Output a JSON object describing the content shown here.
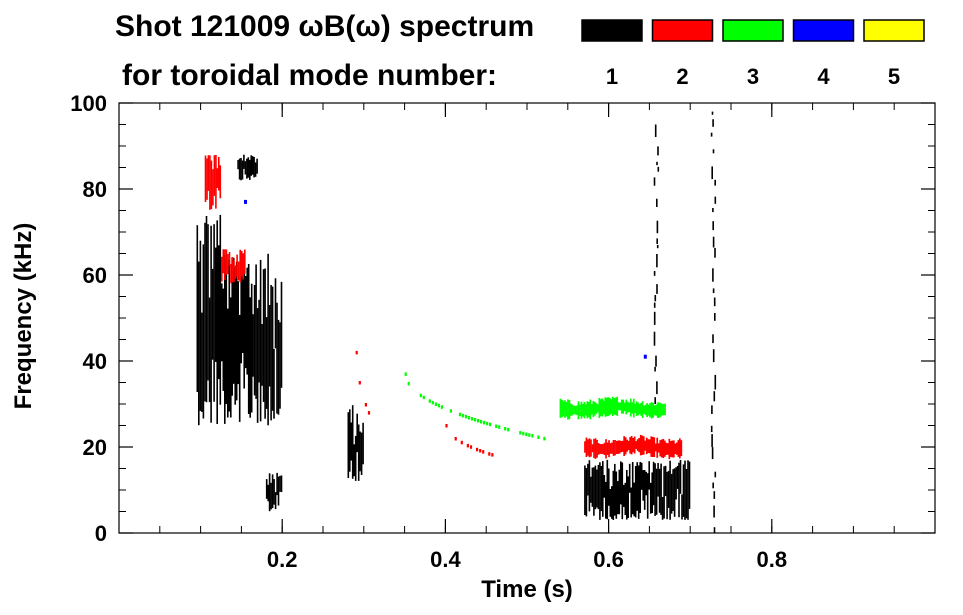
{
  "chart_data": {
    "type": "heatmap",
    "title_line1": "Shot 121009 ωB(ω) spectrum",
    "title_line2": "for toroidal mode number:",
    "xlabel": "Time (s)",
    "ylabel": "Frequency (kHz)",
    "xlim": [
      0.0,
      1.0
    ],
    "ylim": [
      0,
      100
    ],
    "xticks": [
      0.2,
      0.4,
      0.6,
      0.8
    ],
    "xtick_labels": [
      "0.2",
      "0.4",
      "0.6",
      "0.8"
    ],
    "yticks": [
      0,
      20,
      40,
      60,
      80,
      100
    ],
    "ytick_labels": [
      "0",
      "20",
      "40",
      "60",
      "80",
      "100"
    ],
    "legend": [
      {
        "label": "1",
        "color": "#000000"
      },
      {
        "label": "2",
        "color": "#ff0000"
      },
      {
        "label": "3",
        "color": "#00ff00"
      },
      {
        "label": "4",
        "color": "#0000ff"
      },
      {
        "label": "5",
        "color": "#ffff00"
      }
    ],
    "features": [
      {
        "mode": 1,
        "kind": "patch",
        "t": [
          0.095,
          0.125
        ],
        "f": [
          25,
          75
        ]
      },
      {
        "mode": 1,
        "kind": "patch",
        "t": [
          0.125,
          0.2
        ],
        "f": [
          25,
          65
        ]
      },
      {
        "mode": 1,
        "kind": "patch",
        "t": [
          0.145,
          0.17
        ],
        "f": [
          82,
          88
        ]
      },
      {
        "mode": 1,
        "kind": "patch",
        "t": [
          0.18,
          0.2
        ],
        "f": [
          5,
          14
        ]
      },
      {
        "mode": 1,
        "kind": "patch",
        "t": [
          0.28,
          0.3
        ],
        "f": [
          12,
          30
        ]
      },
      {
        "mode": 1,
        "kind": "patch",
        "t": [
          0.57,
          0.7
        ],
        "f": [
          3,
          17
        ]
      },
      {
        "mode": 1,
        "kind": "line",
        "t": [
          0.655,
          0.66
        ],
        "f": [
          30,
          95
        ]
      },
      {
        "mode": 1,
        "kind": "line",
        "t": [
          0.725,
          0.73
        ],
        "f": [
          0,
          98
        ]
      },
      {
        "mode": 2,
        "kind": "patch",
        "t": [
          0.105,
          0.125
        ],
        "f": [
          75,
          88
        ]
      },
      {
        "mode": 2,
        "kind": "patch",
        "t": [
          0.125,
          0.155
        ],
        "f": [
          58,
          66
        ]
      },
      {
        "mode": 2,
        "kind": "curve",
        "t": [
          0.29,
          0.305
        ],
        "f": [
          42,
          28
        ]
      },
      {
        "mode": 2,
        "kind": "curve",
        "t": [
          0.4,
          0.46
        ],
        "f": [
          25,
          18
        ]
      },
      {
        "mode": 2,
        "kind": "band",
        "t": [
          0.57,
          0.69
        ],
        "f": [
          17,
          23
        ]
      },
      {
        "mode": 3,
        "kind": "curve",
        "t": [
          0.35,
          0.52
        ],
        "f": [
          37,
          22
        ]
      },
      {
        "mode": 3,
        "kind": "band",
        "t": [
          0.54,
          0.67
        ],
        "f": [
          26,
          32
        ]
      },
      {
        "mode": 4,
        "kind": "point",
        "t": [
          0.155,
          0.155
        ],
        "f": [
          77,
          77
        ]
      },
      {
        "mode": 4,
        "kind": "point",
        "t": [
          0.645,
          0.645
        ],
        "f": [
          41,
          41
        ]
      }
    ]
  }
}
